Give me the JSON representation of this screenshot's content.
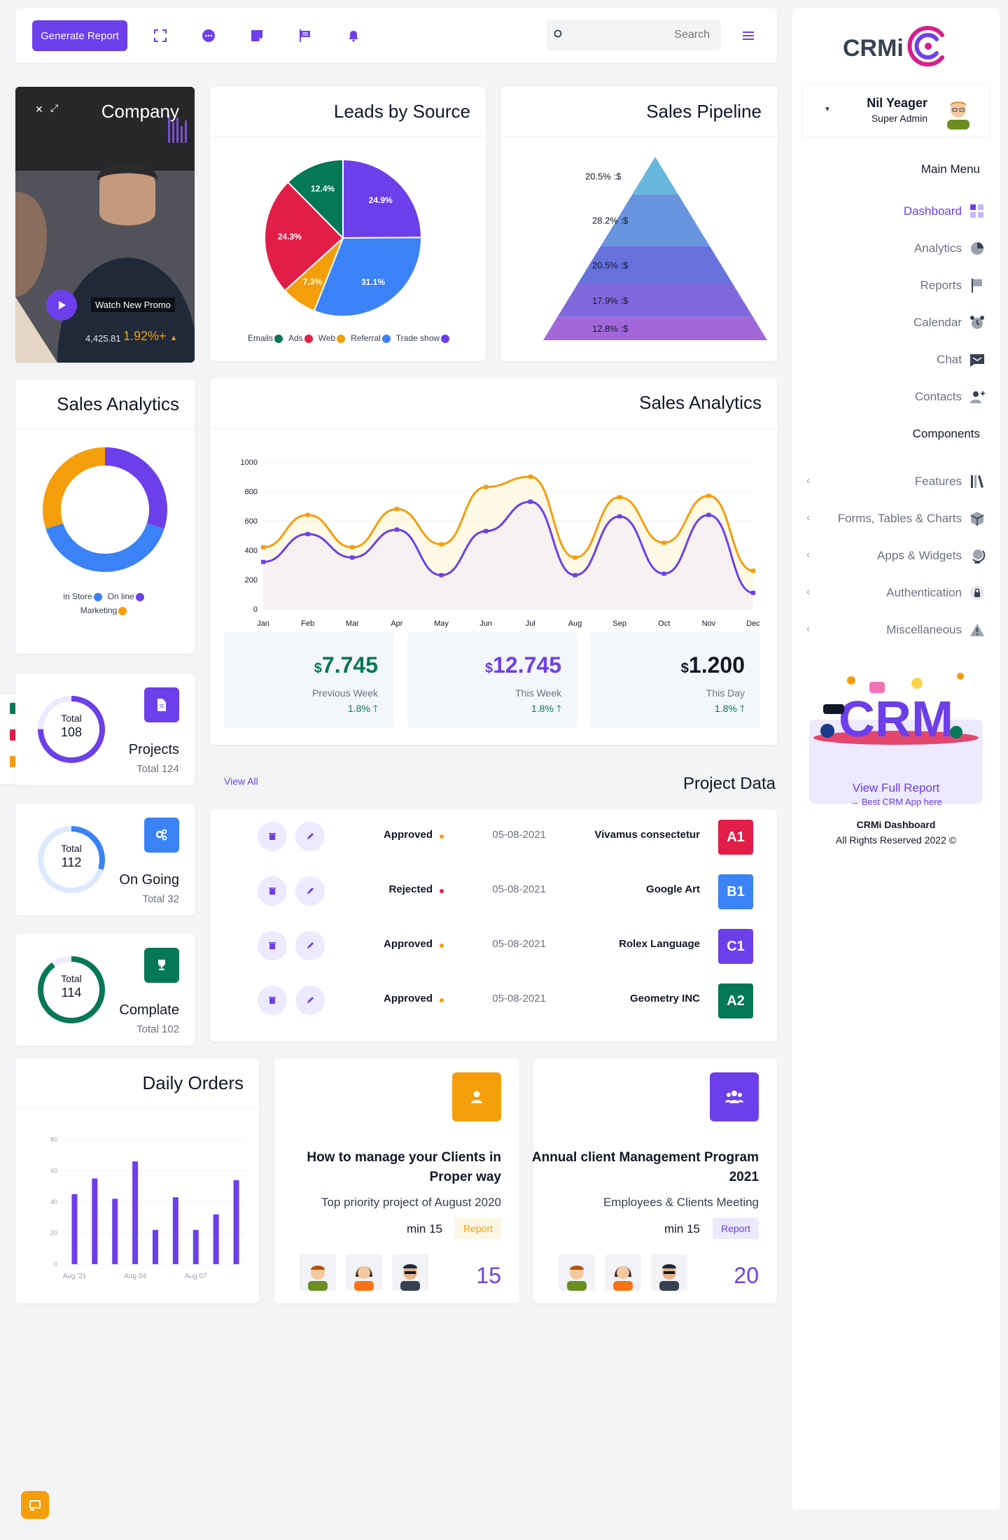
{
  "topbar": {
    "generate_label": "Generate Report",
    "search_placeholder": "Search",
    "icons": [
      "expand-icon",
      "chat-icon",
      "sticky-note-icon",
      "flag-icon",
      "bell-icon"
    ]
  },
  "sidebar": {
    "logo": "CRMi",
    "user": {
      "name": "Nil Yeager",
      "role": "Super Admin"
    },
    "main_menu_heading": "Main Menu",
    "main_menu": [
      {
        "label": "Dashboard",
        "icon": "dashboard-icon",
        "active": true
      },
      {
        "label": "Analytics",
        "icon": "pie-icon"
      },
      {
        "label": "Reports",
        "icon": "flag-icon"
      },
      {
        "label": "Calendar",
        "icon": "alarm-clock-icon"
      },
      {
        "label": "Chat",
        "icon": "message-icon"
      },
      {
        "label": "Contacts",
        "icon": "user-plus-icon"
      }
    ],
    "components_heading": "Components",
    "components": [
      {
        "label": "Features",
        "icon": "books-icon"
      },
      {
        "label": "Forms, Tables & Charts",
        "icon": "cube-icon"
      },
      {
        "label": "Apps & Widgets",
        "icon": "globe-icon"
      },
      {
        "label": "Authentication",
        "icon": "lock-icon"
      },
      {
        "label": "Miscellaneous",
        "icon": "warning-icon"
      }
    ],
    "promo": {
      "title": "View Full Report",
      "subtitle": "→ Best CRM App here"
    },
    "footer": {
      "title": "CRMi Dashboard",
      "copy": "All Rights Reserved 2022 ©"
    }
  },
  "company_card": {
    "title": "Company",
    "promo_label": "Watch New Promo",
    "value": "4,425.81",
    "change": "1.92%+"
  },
  "leads": {
    "title": "Leads by Source"
  },
  "pipeline": {
    "title": "Sales Pipeline"
  },
  "sales_donut": {
    "title": "Sales Analytics"
  },
  "sales_line": {
    "title": "Sales Analytics"
  },
  "stats": [
    {
      "currency": "$",
      "value": "7.745",
      "label": "Previous Week",
      "pct": "1.8%",
      "color": "#047857"
    },
    {
      "currency": "$",
      "value": "12.745",
      "label": "This Week",
      "pct": "1.8%",
      "color": "#6d3fea"
    },
    {
      "currency": "$",
      "value": "1.200",
      "label": "This Day",
      "pct": "1.8%",
      "color": "#111827"
    }
  ],
  "project_data": {
    "title": "Project Data",
    "view_all": "View All",
    "rows": [
      {
        "status": "Approved",
        "dot": "#f59e0b",
        "date": "05-08-2021",
        "name": "Vivamus consectetur",
        "code": "A1",
        "color": "#e11d48"
      },
      {
        "status": "Rejected",
        "dot": "#e11d48",
        "date": "05-08-2021",
        "name": "Google Art",
        "code": "B1",
        "color": "#3b82f6"
      },
      {
        "status": "Approved",
        "dot": "#f59e0b",
        "date": "05-08-2021",
        "name": "Rolex Language",
        "code": "C1",
        "color": "#6d3fea"
      },
      {
        "status": "Approved",
        "dot": "#f59e0b",
        "date": "05-08-2021",
        "name": "Geometry INC",
        "code": "A2",
        "color": "#047857"
      }
    ]
  },
  "small_cards": [
    {
      "total_label": "Total",
      "total": "108",
      "name": "Projects",
      "sub": "Total 124",
      "color": "#6d3fea",
      "fraction": 0.75
    },
    {
      "total_label": "Total",
      "total": "112",
      "name": "On Going",
      "sub": "Total 32",
      "color": "#3b82f6",
      "fraction": 0.3
    },
    {
      "total_label": "Total",
      "total": "114",
      "name": "Complate",
      "sub": "Total 102",
      "color": "#047857",
      "fraction": 0.9
    }
  ],
  "daily_orders": {
    "title": "Daily Orders"
  },
  "tasks": [
    {
      "title": "How to manage your Clients in Proper way",
      "desc": "Top priority project of August 2020",
      "min": "min 15",
      "badge": "Report",
      "num": "15"
    },
    {
      "title": "Annual client Management Program 2021",
      "desc": "Employees & Clients Meeting",
      "min": "min 15",
      "badge": "Report",
      "num": "20"
    }
  ],
  "chart_data": [
    {
      "type": "pie",
      "title": "Leads by Source",
      "slices": [
        {
          "label": "Trade show",
          "value": 24.9,
          "color": "#6d3fea"
        },
        {
          "label": "Referral",
          "value": 31.1,
          "color": "#3b82f6"
        },
        {
          "label": "Web",
          "value": 7.3,
          "color": "#f59e0b"
        },
        {
          "label": "Ads",
          "value": 24.3,
          "color": "#e11d48"
        },
        {
          "label": "Emails",
          "value": 12.4,
          "color": "#047857"
        }
      ],
      "legend": [
        "Emails",
        "Ads",
        "Web",
        "Referral",
        "Trade show"
      ]
    },
    {
      "type": "bar",
      "title": "Sales Pipeline",
      "note": "pyramid",
      "stages": [
        {
          "label": "20.5% :$",
          "value": 20.5,
          "color": "#67b6dc"
        },
        {
          "label": "28.2% :$",
          "value": 28.2,
          "color": "#6794dc"
        },
        {
          "label": "20.5% :$",
          "value": 20.5,
          "color": "#6771dc"
        },
        {
          "label": "17.9% :$",
          "value": 17.9,
          "color": "#8067dc"
        },
        {
          "label": "12.8% :$",
          "value": 12.8,
          "color": "#a367dc"
        }
      ]
    },
    {
      "type": "pie",
      "title": "Sales Analytics",
      "note": "donut",
      "slices": [
        {
          "label": "On line",
          "value": 30,
          "color": "#6d3fea"
        },
        {
          "label": "in Store",
          "value": 40,
          "color": "#3b82f6"
        },
        {
          "label": "Marketing",
          "value": 30,
          "color": "#f59e0b"
        }
      ]
    },
    {
      "type": "line",
      "title": "Sales Analytics",
      "categories": [
        "Jan",
        "Feb",
        "Mar",
        "Apr",
        "May",
        "Jun",
        "Jul",
        "Aug",
        "Sep",
        "Oct",
        "Nov",
        "Dec"
      ],
      "ylim": [
        0,
        1000
      ],
      "yticks": [
        0,
        200,
        400,
        600,
        800,
        1000
      ],
      "series": [
        {
          "values": [
            420,
            640,
            420,
            680,
            440,
            830,
            900,
            350,
            760,
            450,
            770,
            260
          ],
          "color": "#f59e0b"
        },
        {
          "values": [
            320,
            510,
            350,
            540,
            230,
            530,
            730,
            230,
            630,
            240,
            640,
            110
          ],
          "color": "#6d3fea"
        }
      ]
    },
    {
      "type": "bar",
      "title": "Daily Orders",
      "categories": [
        "Aug '21",
        "",
        "",
        "Aug 04",
        "",
        "",
        "Aug 07",
        "",
        ""
      ],
      "ylim": [
        0,
        80
      ],
      "yticks": [
        0,
        20,
        40,
        60,
        80
      ],
      "values": [
        45,
        55,
        42,
        66,
        22,
        43,
        22,
        32,
        54
      ]
    }
  ]
}
